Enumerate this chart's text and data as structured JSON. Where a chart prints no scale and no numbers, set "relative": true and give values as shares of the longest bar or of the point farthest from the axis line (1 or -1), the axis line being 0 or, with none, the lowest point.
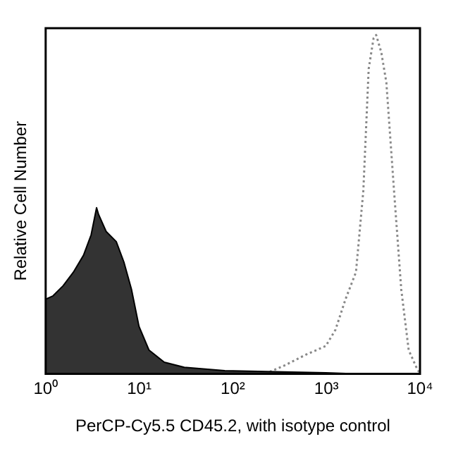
{
  "chart_data": {
    "type": "area",
    "relative": true,
    "log": "x",
    "grid": false,
    "tick_labels": "x",
    "xlabel": "PerCP-Cy5.5 CD45.2, with isotype control",
    "ylabel": "Relative Cell Number",
    "xlim": [
      1,
      10000
    ],
    "xticks": [
      {
        "value": 1,
        "label": "10⁰"
      },
      {
        "value": 10,
        "label": "10¹"
      },
      {
        "value": 100,
        "label": "10²"
      },
      {
        "value": 1000,
        "label": "10³"
      },
      {
        "value": 10000,
        "label": "10⁴"
      }
    ],
    "series": [
      {
        "type": "area",
        "color": "#333333",
        "x": [
          1,
          1.2,
          1.54,
          1.98,
          2.54,
          3.06,
          3.5,
          3.68,
          4.43,
          5.68,
          6.85,
          8.25,
          9.94,
          12.7,
          18.5,
          30.3,
          82,
          280,
          985,
          2070
        ],
        "values": [
          0.22,
          0.23,
          0.26,
          0.3,
          0.35,
          0.41,
          0.49,
          0.47,
          0.42,
          0.39,
          0.33,
          0.25,
          0.14,
          0.07,
          0.034,
          0.019,
          0.009,
          0.006,
          0.003,
          0
        ]
      },
      {
        "type": "line",
        "line_style": "dotted",
        "color": "#888888",
        "x": [
          222,
          366,
          600,
          985,
          1250,
          1600,
          2070,
          2480,
          2830,
          3190,
          3400,
          3850,
          4370,
          5280,
          6300,
          7570,
          9120,
          10000
        ],
        "values": [
          0,
          0.026,
          0.056,
          0.082,
          0.13,
          0.22,
          0.3,
          0.54,
          0.9,
          0.99,
          1,
          0.95,
          0.86,
          0.54,
          0.25,
          0.07,
          0.02,
          0
        ]
      }
    ]
  }
}
